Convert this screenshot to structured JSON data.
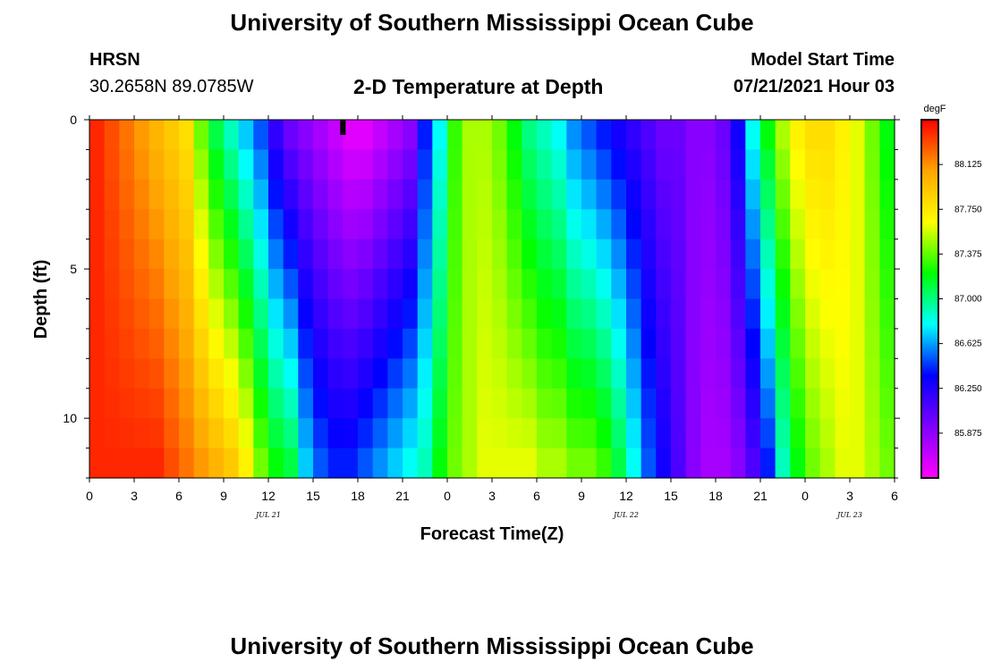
{
  "header": {
    "title": "University of Southern Mississippi Ocean Cube",
    "station": "HRSN",
    "coords": "30.2658N  89.0785W",
    "subtitle": "2-D Temperature at Depth",
    "start_label": "Model Start Time",
    "start_time": "07/21/2021 Hour 03"
  },
  "footer": {
    "title": "University of Southern Mississippi Ocean Cube"
  },
  "chart_data": {
    "type": "heatmap",
    "title": "2-D Temperature at Depth",
    "xlabel": "Forecast Time(Z)",
    "ylabel": "Depth (ft)",
    "x_hours_range": [
      0,
      54
    ],
    "x_ticks": [
      "0",
      "3",
      "6",
      "9",
      "12",
      "15",
      "18",
      "21",
      "0",
      "3",
      "6",
      "9",
      "12",
      "15",
      "18",
      "21",
      "0",
      "3",
      "6"
    ],
    "x_date_labels": [
      {
        "label": "JUL 21",
        "at_hour": 12
      },
      {
        "label": "JUL 22",
        "at_hour": 36
      },
      {
        "label": "JUL 23",
        "at_hour": 51
      }
    ],
    "y_range": [
      0,
      12
    ],
    "y_ticks": [
      "0",
      "5",
      "10"
    ],
    "colorbar": {
      "unit": "degF",
      "range": [
        85.5,
        88.5
      ],
      "ticks": [
        "88.125",
        "87.750",
        "87.375",
        "87.000",
        "86.625",
        "86.250",
        "85.875"
      ],
      "colors": [
        "#ff00ff",
        "#8000ff",
        "#0000ff",
        "#00ffff",
        "#00ff00",
        "#ffff00",
        "#ffa500",
        "#ff0000"
      ]
    },
    "model_start_marker_hour": 17,
    "temperature_degF_surface_by_hour": [
      88.4,
      88.3,
      88.2,
      88.1,
      88.0,
      87.9,
      87.8,
      87.4,
      87.1,
      86.9,
      86.7,
      86.5,
      86.2,
      86.0,
      85.9,
      85.8,
      85.7,
      85.6,
      85.6,
      85.7,
      85.8,
      85.9,
      86.4,
      86.8,
      87.3,
      87.5,
      87.5,
      87.4,
      87.2,
      87.0,
      86.9,
      86.8,
      86.6,
      86.5,
      86.4,
      86.3,
      86.2,
      86.1,
      86.0,
      86.0,
      85.9,
      85.9,
      86.0,
      86.3,
      86.8,
      87.2,
      87.5,
      87.7,
      87.8,
      87.8,
      87.7,
      87.6,
      87.4,
      87.2,
      87.1
    ],
    "temperature_degF_bottom_by_hour": [
      88.4,
      88.4,
      88.4,
      88.4,
      88.4,
      88.3,
      88.2,
      88.1,
      88.0,
      87.9,
      87.7,
      87.4,
      87.2,
      87.1,
      86.7,
      86.5,
      86.4,
      86.4,
      86.5,
      86.6,
      86.7,
      86.8,
      86.9,
      87.2,
      87.4,
      87.5,
      87.6,
      87.6,
      87.6,
      87.6,
      87.5,
      87.5,
      87.4,
      87.4,
      87.3,
      87.1,
      86.8,
      86.5,
      86.3,
      86.1,
      85.9,
      85.8,
      85.8,
      85.9,
      86.1,
      86.4,
      86.9,
      87.2,
      87.4,
      87.5,
      87.6,
      87.6,
      87.5,
      87.4,
      87.4
    ]
  }
}
